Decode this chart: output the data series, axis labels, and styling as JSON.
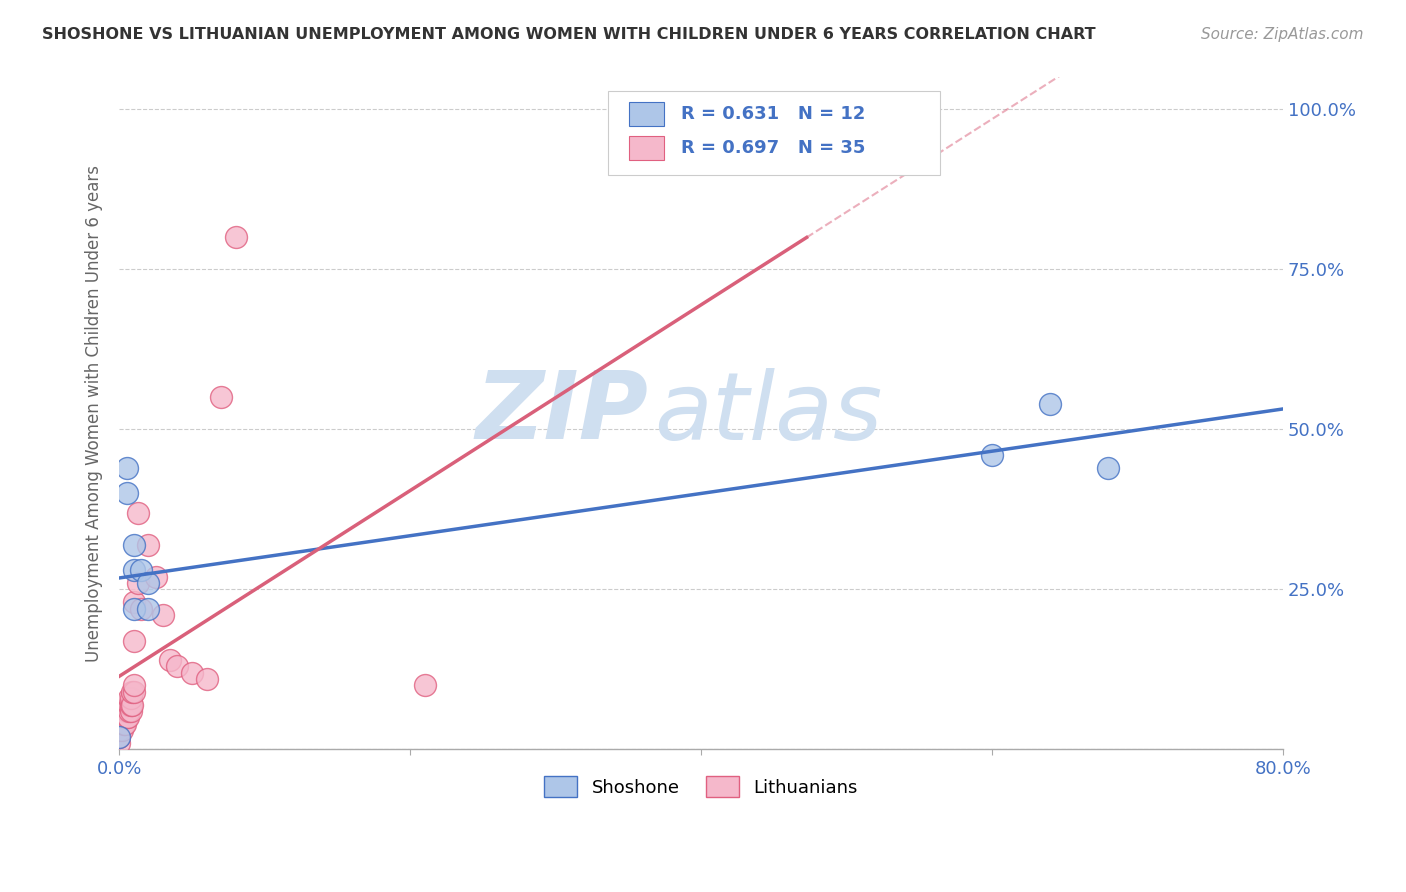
{
  "title": "SHOSHONE VS LITHUANIAN UNEMPLOYMENT AMONG WOMEN WITH CHILDREN UNDER 6 YEARS CORRELATION CHART",
  "source": "Source: ZipAtlas.com",
  "ylabel": "Unemployment Among Women with Children Under 6 years",
  "xlim": [
    0.0,
    0.8
  ],
  "ylim": [
    0.0,
    1.05
  ],
  "xticks": [
    0.0,
    0.2,
    0.4,
    0.6,
    0.8
  ],
  "xticklabels": [
    "0.0%",
    "",
    "",
    "",
    "80.0%"
  ],
  "ytick_positions": [
    0.0,
    0.25,
    0.5,
    0.75,
    1.0
  ],
  "yticklabels_right": [
    "",
    "25.0%",
    "50.0%",
    "75.0%",
    "100.0%"
  ],
  "shoshone_R": 0.631,
  "shoshone_N": 12,
  "lithuanian_R": 0.697,
  "lithuanian_N": 35,
  "shoshone_color": "#aec6e8",
  "lithuanian_color": "#f5b8cb",
  "shoshone_edge_color": "#4472c4",
  "lithuanian_edge_color": "#e06080",
  "shoshone_line_color": "#4472c4",
  "lithuanian_line_color": "#d9607a",
  "shoshone_scatter_x": [
    0.0,
    0.005,
    0.005,
    0.01,
    0.01,
    0.01,
    0.015,
    0.02,
    0.02,
    0.6,
    0.64,
    0.68
  ],
  "shoshone_scatter_y": [
    0.02,
    0.44,
    0.4,
    0.32,
    0.28,
    0.22,
    0.28,
    0.26,
    0.22,
    0.46,
    0.54,
    0.44
  ],
  "lithuanian_scatter_x": [
    0.0,
    0.0,
    0.0,
    0.002,
    0.003,
    0.003,
    0.004,
    0.005,
    0.005,
    0.006,
    0.007,
    0.007,
    0.007,
    0.008,
    0.008,
    0.008,
    0.009,
    0.009,
    0.01,
    0.01,
    0.01,
    0.01,
    0.013,
    0.013,
    0.015,
    0.02,
    0.025,
    0.03,
    0.035,
    0.04,
    0.05,
    0.06,
    0.07,
    0.08,
    0.21
  ],
  "lithuanian_scatter_y": [
    0.01,
    0.02,
    0.03,
    0.03,
    0.04,
    0.05,
    0.04,
    0.05,
    0.06,
    0.05,
    0.06,
    0.07,
    0.08,
    0.06,
    0.07,
    0.08,
    0.07,
    0.09,
    0.09,
    0.1,
    0.17,
    0.23,
    0.26,
    0.37,
    0.22,
    0.32,
    0.27,
    0.21,
    0.14,
    0.13,
    0.12,
    0.11,
    0.55,
    0.8,
    0.1
  ],
  "background_color": "#ffffff",
  "grid_color": "#cccccc",
  "watermark_zip": "ZIP",
  "watermark_atlas": "atlas",
  "watermark_color": "#cfdff0"
}
